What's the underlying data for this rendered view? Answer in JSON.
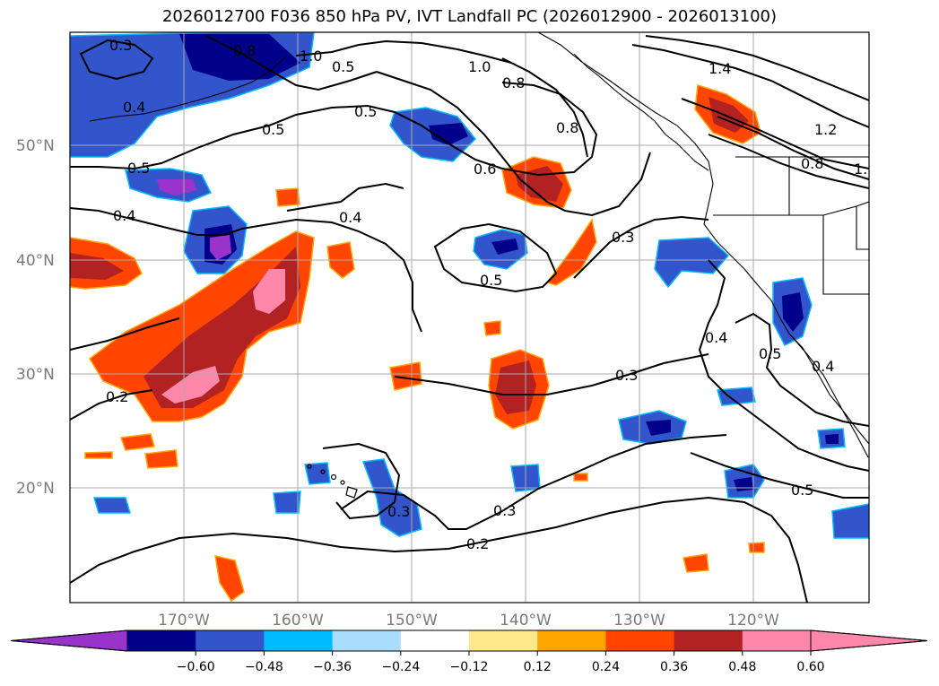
{
  "title": "2026012700 F036 850 hPa PV, IVT Landfall PC (2026012900 - 2026013100)",
  "latitude_labels": [
    "50°N",
    "40°N",
    "30°N",
    "20°N"
  ],
  "longitude_labels": [
    "170°W",
    "160°W",
    "150°W",
    "140°W",
    "130°W",
    "120°W"
  ],
  "pv_contour_labels": [
    "0.3",
    "0.4",
    "0.5",
    "0.8",
    "1.0",
    "0.5",
    "0.5",
    "0.4",
    "0.4",
    "0.5",
    "1.0",
    "0.8",
    "0.8",
    "0.6",
    "0.5",
    "0.3",
    "1.4",
    "1.2",
    "0.8",
    "1.",
    "0.2",
    "0.3",
    "0.3",
    "0.3",
    "0.2",
    "0.5",
    "0.4",
    "0.5",
    "0.4"
  ],
  "colorbar": {
    "tick_labels": [
      "−0.60",
      "−0.48",
      "−0.36",
      "−0.24",
      "−0.12",
      "0.12",
      "0.24",
      "0.36",
      "0.48",
      "0.60"
    ],
    "colors": [
      "#9933cc",
      "#00008b",
      "#3355cc",
      "#00bbff",
      "#aaddff",
      "#ffffff",
      "#ffe88a",
      "#ffa500",
      "#ff4500",
      "#b22222",
      "#ff88aa",
      "#ff88aa"
    ],
    "extend": "both"
  },
  "colors": {
    "contour_line": "#000000",
    "coastline": "#000000",
    "gridline": "#aaaaaa",
    "axis_label": "#7a7a7a"
  }
}
